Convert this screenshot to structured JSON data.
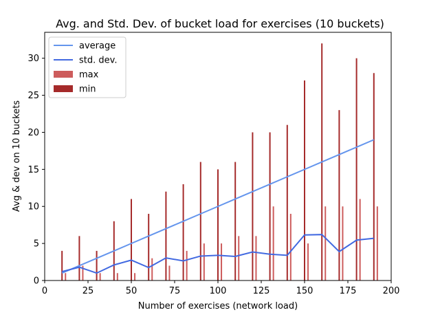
{
  "chart_data": {
    "type": "bar",
    "title": "Avg. and Std. Dev. of bucket load for exercises (10 buckets)",
    "xlabel": "Number of exercises (network load)",
    "ylabel": "Avg & dev on 10 buckets",
    "xlim": [
      0,
      200
    ],
    "ylim": [
      0,
      33.5
    ],
    "xticks": [
      0,
      25,
      50,
      75,
      100,
      125,
      150,
      175,
      200
    ],
    "yticks": [
      0,
      5,
      10,
      15,
      20,
      25,
      30
    ],
    "grid": false,
    "legend_position": "top-left",
    "x": [
      10,
      20,
      30,
      40,
      50,
      60,
      70,
      80,
      90,
      100,
      110,
      120,
      130,
      140,
      150,
      160,
      170,
      180,
      190
    ],
    "series": [
      {
        "name": "average",
        "kind": "line",
        "color": "#6495ed",
        "values": [
          1,
          2,
          3,
          4,
          5,
          6,
          7,
          8,
          9,
          10,
          11,
          12,
          13,
          14,
          15,
          16,
          17,
          18,
          19
        ]
      },
      {
        "name": "std. dev.",
        "kind": "line",
        "color": "#4169e1",
        "values": [
          1.2,
          1.8,
          1.0,
          2.1,
          2.75,
          1.75,
          3.05,
          2.65,
          3.3,
          3.4,
          3.25,
          3.85,
          3.55,
          3.4,
          6.15,
          6.2,
          3.9,
          5.45,
          5.7
        ]
      },
      {
        "name": "max",
        "kind": "bar",
        "color": "#cd5c5c",
        "values": [
          1,
          2,
          1,
          1,
          1,
          3,
          2,
          4,
          5,
          5,
          6,
          6,
          10,
          9,
          5,
          10,
          10,
          11,
          10
        ]
      },
      {
        "name": "min",
        "kind": "bar",
        "color": "#a52a2a",
        "values": [
          4,
          6,
          4,
          8,
          11,
          9,
          12,
          13,
          16,
          15,
          16,
          20,
          20,
          21,
          27,
          32,
          23,
          30,
          28
        ]
      }
    ]
  }
}
